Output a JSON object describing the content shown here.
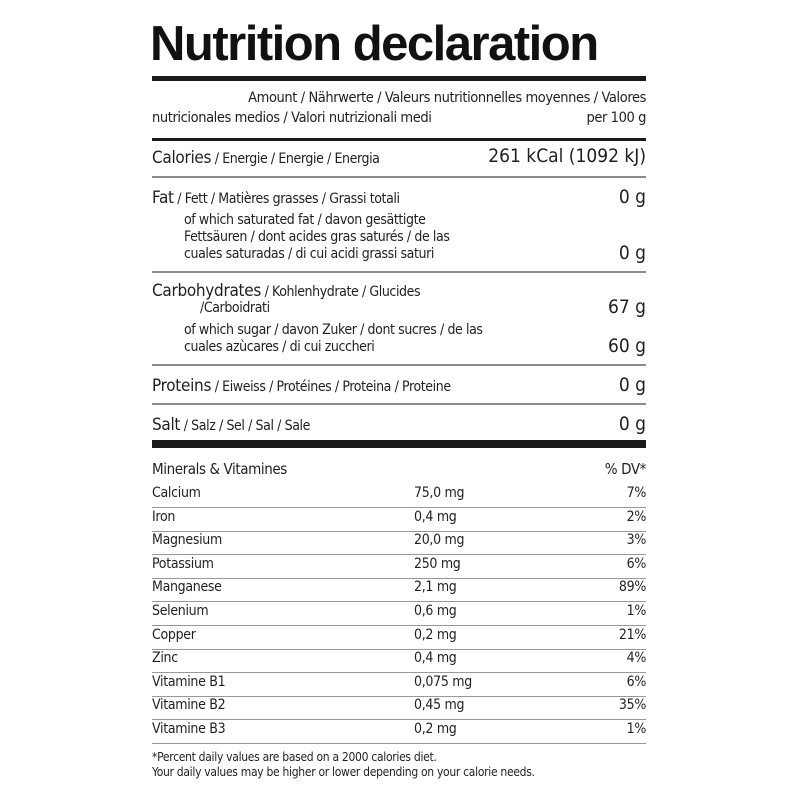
{
  "title": "Nutrition declaration",
  "header": {
    "line1": "Amount / Nährwerte / Valeurs nutritionnelles moyennes / Valores",
    "line2": "nutricionales medios / Valori nutrizionali medi",
    "per": "per 100 g"
  },
  "calories": {
    "label": "Calories",
    "sub": " / Energie / Energie / Energia",
    "value": "261 kCal (1092 kJ)"
  },
  "fat": {
    "label": "Fat",
    "sub": " / Fett / Matières grasses / Grassi totali",
    "value": "0 g",
    "saturated": {
      "line1": "of which saturated fat / davon gesättigte",
      "line2": "Fettsäuren / dont acides gras saturés / de las",
      "line3": "cuales saturadas / di cui acidi grassi saturi",
      "value": "0 g"
    }
  },
  "carbohydrates": {
    "label": "Carbohydrates",
    "sub": " / Kohlenhydrate / Glucides",
    "sub2": "/Carboidrati",
    "value": "67 g",
    "sugar": {
      "line1": "of which sugar / davon Zuker / dont sucres / de las",
      "line2": "cuales azùcares / di cui zuccheri",
      "value": "60 g"
    }
  },
  "proteins": {
    "label": "Proteins",
    "sub": " / Eiweiss / Protéines / Proteina / Proteine",
    "value": "0 g"
  },
  "salt": {
    "label": "Salt",
    "sub": " / Salz / Sel / Sal / Sale",
    "value": "0 g"
  },
  "minerals": {
    "header": "Minerals & Vitamines",
    "dv_header": "% DV*",
    "rows": [
      {
        "name": "Calcium",
        "amount": "75,0 mg",
        "dv": "7%"
      },
      {
        "name": "Iron",
        "amount": "0,4 mg",
        "dv": "2%"
      },
      {
        "name": "Magnesium",
        "amount": "20,0 mg",
        "dv": "3%"
      },
      {
        "name": "Potassium",
        "amount": "250 mg",
        "dv": "6%"
      },
      {
        "name": "Manganese",
        "amount": "2,1 mg",
        "dv": "89%"
      },
      {
        "name": "Selenium",
        "amount": "0,6 mg",
        "dv": "1%"
      },
      {
        "name": "Copper",
        "amount": "0,2 mg",
        "dv": "21%"
      },
      {
        "name": "Zinc",
        "amount": "0,4 mg",
        "dv": "4%"
      },
      {
        "name": "Vitamine B1",
        "amount": "0,075 mg",
        "dv": "6%"
      },
      {
        "name": "Vitamine B2",
        "amount": "0,45 mg",
        "dv": "35%"
      },
      {
        "name": "Vitamine B3",
        "amount": "0,2 mg",
        "dv": "1%"
      }
    ]
  },
  "footnote": {
    "line1": "*Percent daily values are based on a 2000 calories diet.",
    "line2": "Your daily values may be higher or lower depending on your calorie needs."
  }
}
